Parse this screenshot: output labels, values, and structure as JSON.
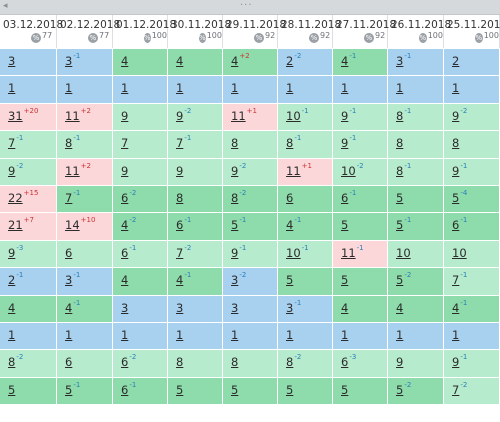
{
  "window": {
    "collapse_arrow": "◂",
    "drag_handle": "···"
  },
  "columns": [
    {
      "date": "03.12.2018",
      "pct": "77"
    },
    {
      "date": "02.12.2018",
      "pct": "77"
    },
    {
      "date": "01.12.2018",
      "pct": "100"
    },
    {
      "date": "30.11.2018",
      "pct": "100"
    },
    {
      "date": "29.11.2018",
      "pct": "92"
    },
    {
      "date": "28.11.2018",
      "pct": "92"
    },
    {
      "date": "27.11.2018",
      "pct": "92"
    },
    {
      "date": "26.11.2018",
      "pct": "100"
    },
    {
      "date": "25.11.2018",
      "pct": "100"
    }
  ],
  "pct_icon": "%",
  "colors": {
    "blue": "#a8d0ef",
    "green": "#8edcab",
    "mint": "#b7ebcd",
    "pink": "#fbd7d9"
  },
  "rows": [
    [
      {
        "v": "3",
        "d": "",
        "c": "blue"
      },
      {
        "v": "3",
        "d": "-1",
        "c": "blue"
      },
      {
        "v": "4",
        "d": "",
        "c": "green"
      },
      {
        "v": "4",
        "d": "",
        "c": "green"
      },
      {
        "v": "4",
        "d": "+2",
        "c": "green"
      },
      {
        "v": "2",
        "d": "-2",
        "c": "blue"
      },
      {
        "v": "4",
        "d": "-1",
        "c": "green"
      },
      {
        "v": "3",
        "d": "-1",
        "c": "blue"
      },
      {
        "v": "2",
        "d": "",
        "c": "blue"
      }
    ],
    [
      {
        "v": "1",
        "d": "",
        "c": "blue"
      },
      {
        "v": "1",
        "d": "",
        "c": "blue"
      },
      {
        "v": "1",
        "d": "",
        "c": "blue"
      },
      {
        "v": "1",
        "d": "",
        "c": "blue"
      },
      {
        "v": "1",
        "d": "",
        "c": "blue"
      },
      {
        "v": "1",
        "d": "",
        "c": "blue"
      },
      {
        "v": "1",
        "d": "",
        "c": "blue"
      },
      {
        "v": "1",
        "d": "",
        "c": "blue"
      },
      {
        "v": "1",
        "d": "",
        "c": "blue"
      }
    ],
    [
      {
        "v": "31",
        "d": "+20",
        "c": "pink"
      },
      {
        "v": "11",
        "d": "+2",
        "c": "pink"
      },
      {
        "v": "9",
        "d": "",
        "c": "mint"
      },
      {
        "v": "9",
        "d": "-2",
        "c": "mint"
      },
      {
        "v": "11",
        "d": "+1",
        "c": "pink"
      },
      {
        "v": "10",
        "d": "-1",
        "c": "mint"
      },
      {
        "v": "9",
        "d": "-1",
        "c": "mint"
      },
      {
        "v": "8",
        "d": "-1",
        "c": "mint"
      },
      {
        "v": "9",
        "d": "-2",
        "c": "mint"
      }
    ],
    [
      {
        "v": "7",
        "d": "-1",
        "c": "mint"
      },
      {
        "v": "8",
        "d": "-1",
        "c": "mint"
      },
      {
        "v": "7",
        "d": "",
        "c": "mint"
      },
      {
        "v": "7",
        "d": "-1",
        "c": "mint"
      },
      {
        "v": "8",
        "d": "",
        "c": "mint"
      },
      {
        "v": "8",
        "d": "-1",
        "c": "mint"
      },
      {
        "v": "9",
        "d": "-1",
        "c": "mint"
      },
      {
        "v": "8",
        "d": "",
        "c": "mint"
      },
      {
        "v": "8",
        "d": "",
        "c": "mint"
      }
    ],
    [
      {
        "v": "9",
        "d": "-2",
        "c": "mint"
      },
      {
        "v": "11",
        "d": "+2",
        "c": "pink"
      },
      {
        "v": "9",
        "d": "",
        "c": "mint"
      },
      {
        "v": "9",
        "d": "",
        "c": "mint"
      },
      {
        "v": "9",
        "d": "-2",
        "c": "mint"
      },
      {
        "v": "11",
        "d": "+1",
        "c": "pink"
      },
      {
        "v": "10",
        "d": "-2",
        "c": "mint"
      },
      {
        "v": "8",
        "d": "-1",
        "c": "mint"
      },
      {
        "v": "9",
        "d": "-1",
        "c": "mint"
      }
    ],
    [
      {
        "v": "22",
        "d": "+15",
        "c": "pink"
      },
      {
        "v": "7",
        "d": "-1",
        "c": "green"
      },
      {
        "v": "6",
        "d": "-2",
        "c": "green"
      },
      {
        "v": "8",
        "d": "",
        "c": "green"
      },
      {
        "v": "8",
        "d": "-2",
        "c": "green"
      },
      {
        "v": "6",
        "d": "",
        "c": "green"
      },
      {
        "v": "6",
        "d": "-1",
        "c": "green"
      },
      {
        "v": "5",
        "d": "",
        "c": "green"
      },
      {
        "v": "5",
        "d": "-4",
        "c": "green"
      }
    ],
    [
      {
        "v": "21",
        "d": "+7",
        "c": "pink"
      },
      {
        "v": "14",
        "d": "+10",
        "c": "pink"
      },
      {
        "v": "4",
        "d": "-2",
        "c": "green"
      },
      {
        "v": "6",
        "d": "-1",
        "c": "green"
      },
      {
        "v": "5",
        "d": "-1",
        "c": "green"
      },
      {
        "v": "4",
        "d": "-1",
        "c": "green"
      },
      {
        "v": "5",
        "d": "",
        "c": "green"
      },
      {
        "v": "5",
        "d": "-1",
        "c": "green"
      },
      {
        "v": "6",
        "d": "-1",
        "c": "green"
      }
    ],
    [
      {
        "v": "9",
        "d": "-3",
        "c": "mint"
      },
      {
        "v": "6",
        "d": "",
        "c": "mint"
      },
      {
        "v": "6",
        "d": "-1",
        "c": "mint"
      },
      {
        "v": "7",
        "d": "-2",
        "c": "mint"
      },
      {
        "v": "9",
        "d": "-1",
        "c": "mint"
      },
      {
        "v": "10",
        "d": "-1",
        "c": "mint"
      },
      {
        "v": "11",
        "d": "-1",
        "c": "pink"
      },
      {
        "v": "10",
        "d": "",
        "c": "mint"
      },
      {
        "v": "10",
        "d": "",
        "c": "mint"
      }
    ],
    [
      {
        "v": "2",
        "d": "-1",
        "c": "blue"
      },
      {
        "v": "3",
        "d": "-1",
        "c": "blue"
      },
      {
        "v": "4",
        "d": "",
        "c": "green"
      },
      {
        "v": "4",
        "d": "-1",
        "c": "green"
      },
      {
        "v": "3",
        "d": "-2",
        "c": "blue"
      },
      {
        "v": "5",
        "d": "",
        "c": "green"
      },
      {
        "v": "5",
        "d": "",
        "c": "green"
      },
      {
        "v": "5",
        "d": "-2",
        "c": "green"
      },
      {
        "v": "7",
        "d": "-1",
        "c": "mint"
      }
    ],
    [
      {
        "v": "4",
        "d": "",
        "c": "green"
      },
      {
        "v": "4",
        "d": "-1",
        "c": "green"
      },
      {
        "v": "3",
        "d": "",
        "c": "blue"
      },
      {
        "v": "3",
        "d": "",
        "c": "blue"
      },
      {
        "v": "3",
        "d": "",
        "c": "blue"
      },
      {
        "v": "3",
        "d": "-1",
        "c": "blue"
      },
      {
        "v": "4",
        "d": "",
        "c": "green"
      },
      {
        "v": "4",
        "d": "",
        "c": "green"
      },
      {
        "v": "4",
        "d": "-1",
        "c": "green"
      }
    ],
    [
      {
        "v": "1",
        "d": "",
        "c": "blue"
      },
      {
        "v": "1",
        "d": "",
        "c": "blue"
      },
      {
        "v": "1",
        "d": "",
        "c": "blue"
      },
      {
        "v": "1",
        "d": "",
        "c": "blue"
      },
      {
        "v": "1",
        "d": "",
        "c": "blue"
      },
      {
        "v": "1",
        "d": "",
        "c": "blue"
      },
      {
        "v": "1",
        "d": "",
        "c": "blue"
      },
      {
        "v": "1",
        "d": "",
        "c": "blue"
      },
      {
        "v": "1",
        "d": "",
        "c": "blue"
      }
    ],
    [
      {
        "v": "8",
        "d": "-2",
        "c": "mint"
      },
      {
        "v": "6",
        "d": "",
        "c": "mint"
      },
      {
        "v": "6",
        "d": "-2",
        "c": "mint"
      },
      {
        "v": "8",
        "d": "",
        "c": "mint"
      },
      {
        "v": "8",
        "d": "",
        "c": "mint"
      },
      {
        "v": "8",
        "d": "-2",
        "c": "mint"
      },
      {
        "v": "6",
        "d": "-3",
        "c": "mint"
      },
      {
        "v": "9",
        "d": "",
        "c": "mint"
      },
      {
        "v": "9",
        "d": "-1",
        "c": "mint"
      }
    ],
    [
      {
        "v": "5",
        "d": "",
        "c": "green"
      },
      {
        "v": "5",
        "d": "-1",
        "c": "green"
      },
      {
        "v": "6",
        "d": "-1",
        "c": "green"
      },
      {
        "v": "5",
        "d": "",
        "c": "green"
      },
      {
        "v": "5",
        "d": "",
        "c": "green"
      },
      {
        "v": "5",
        "d": "",
        "c": "green"
      },
      {
        "v": "5",
        "d": "",
        "c": "green"
      },
      {
        "v": "5",
        "d": "-2",
        "c": "green"
      },
      {
        "v": "7",
        "d": "-2",
        "c": "mint"
      }
    ]
  ]
}
